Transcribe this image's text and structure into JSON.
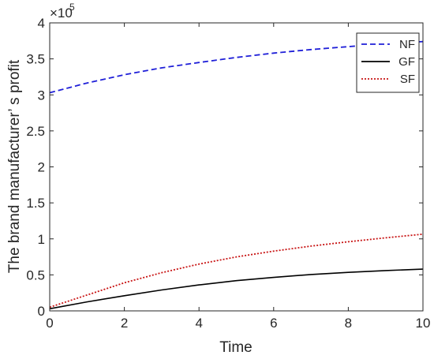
{
  "chart_data": {
    "type": "line",
    "title": "",
    "xlabel": "Time",
    "ylabel": "The brand manufacturer’ s profit",
    "xlim": [
      0,
      10
    ],
    "ylim": [
      0,
      400000
    ],
    "x_ticks": [
      0,
      2,
      4,
      6,
      8,
      10
    ],
    "x_tick_labels": [
      "0",
      "2",
      "4",
      "6",
      "8",
      "10"
    ],
    "y_ticks": [
      0,
      50000,
      100000,
      150000,
      200000,
      250000,
      300000,
      350000,
      400000
    ],
    "y_tick_labels": [
      "0",
      "0.5",
      "1",
      "1.5",
      "2",
      "2.5",
      "3",
      "3.5",
      "4"
    ],
    "y_exponent_base": "×10",
    "y_exponent_power": "5",
    "grid": false,
    "legend_position": "top-right",
    "x": [
      0,
      1,
      2,
      3,
      4,
      5,
      6,
      7,
      8,
      9,
      10
    ],
    "series": [
      {
        "name": "NF",
        "style": "dashed",
        "color": "#1f1fd8",
        "values": [
          303000,
          316500,
          328000,
          337500,
          345000,
          352000,
          358000,
          363000,
          367000,
          371000,
          374000
        ]
      },
      {
        "name": "GF",
        "style": "solid",
        "color": "#000000",
        "values": [
          3000,
          12500,
          21000,
          29000,
          36000,
          42000,
          46500,
          50500,
          53500,
          56000,
          58000
        ]
      },
      {
        "name": "SF",
        "style": "dotted",
        "color": "#c81414",
        "values": [
          5000,
          22000,
          39000,
          53000,
          65000,
          75000,
          83000,
          90000,
          96000,
          101500,
          106500
        ]
      }
    ]
  }
}
